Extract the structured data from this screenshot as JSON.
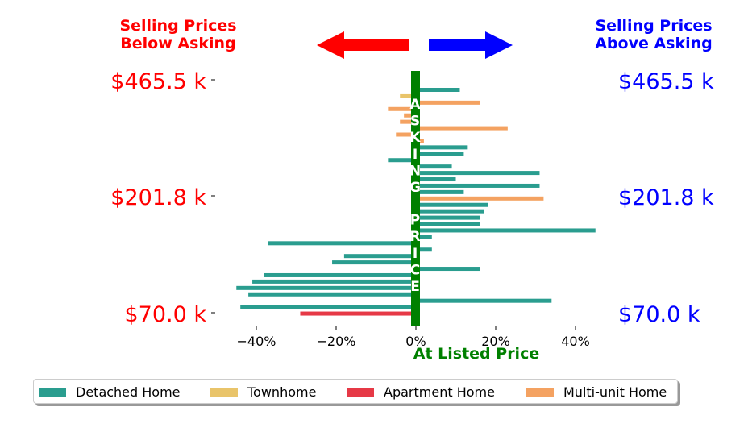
{
  "header": {
    "left_line1": "Selling Prices",
    "left_line2": "Below Asking",
    "right_line1": "Selling Prices",
    "right_line2": "Above Asking"
  },
  "colors": {
    "below": "#ff0000",
    "above": "#0000ff",
    "center": "#008000",
    "detached": "#2a9d8f",
    "townhome": "#e9c46a",
    "apartment": "#e63946",
    "multi_unit": "#f4a261"
  },
  "center_label": "ASKING PRICE",
  "legend": [
    {
      "label": "Detached Home",
      "type": "detached"
    },
    {
      "label": "Townhome",
      "type": "townhome"
    },
    {
      "label": "Apartment Home",
      "type": "apartment"
    },
    {
      "label": "Multi-unit Home",
      "type": "multi_unit"
    }
  ],
  "chart_data": {
    "type": "bar",
    "orientation": "horizontal",
    "xlabel": "At Listed Price",
    "xlim": [
      -50,
      45
    ],
    "xticks": [
      -40,
      -20,
      0,
      20,
      40
    ],
    "xtick_labels": [
      "−40%",
      "−20%",
      "0%",
      "20%",
      "40%"
    ],
    "y_tick_labels": [
      "$70.0 k",
      "$201.8 k",
      "$465.5 k"
    ],
    "bars": [
      {
        "value": 11,
        "type": "detached"
      },
      {
        "value": -4,
        "type": "townhome"
      },
      {
        "value": 16,
        "type": "multi_unit"
      },
      {
        "value": -7,
        "type": "multi_unit"
      },
      {
        "value": -3,
        "type": "multi_unit"
      },
      {
        "value": -4,
        "type": "multi_unit"
      },
      {
        "value": 23,
        "type": "multi_unit"
      },
      {
        "value": -5,
        "type": "multi_unit"
      },
      {
        "value": 2,
        "type": "multi_unit"
      },
      {
        "value": 13,
        "type": "detached"
      },
      {
        "value": 12,
        "type": "detached"
      },
      {
        "value": -7,
        "type": "detached"
      },
      {
        "value": 9,
        "type": "detached"
      },
      {
        "value": 31,
        "type": "detached"
      },
      {
        "value": 10,
        "type": "detached"
      },
      {
        "value": 31,
        "type": "detached"
      },
      {
        "value": 12,
        "type": "detached"
      },
      {
        "value": 32,
        "type": "multi_unit"
      },
      {
        "value": 18,
        "type": "detached"
      },
      {
        "value": 17,
        "type": "detached"
      },
      {
        "value": 16,
        "type": "detached"
      },
      {
        "value": 16,
        "type": "detached"
      },
      {
        "value": 45,
        "type": "detached"
      },
      {
        "value": 4,
        "type": "detached"
      },
      {
        "value": -37,
        "type": "detached"
      },
      {
        "value": 4,
        "type": "detached"
      },
      {
        "value": -18,
        "type": "detached"
      },
      {
        "value": -21,
        "type": "detached"
      },
      {
        "value": 16,
        "type": "detached"
      },
      {
        "value": -38,
        "type": "detached"
      },
      {
        "value": -41,
        "type": "detached"
      },
      {
        "value": -45,
        "type": "detached"
      },
      {
        "value": -42,
        "type": "detached"
      },
      {
        "value": 34,
        "type": "detached"
      },
      {
        "value": -44,
        "type": "detached"
      },
      {
        "value": -29,
        "type": "apartment"
      }
    ]
  }
}
